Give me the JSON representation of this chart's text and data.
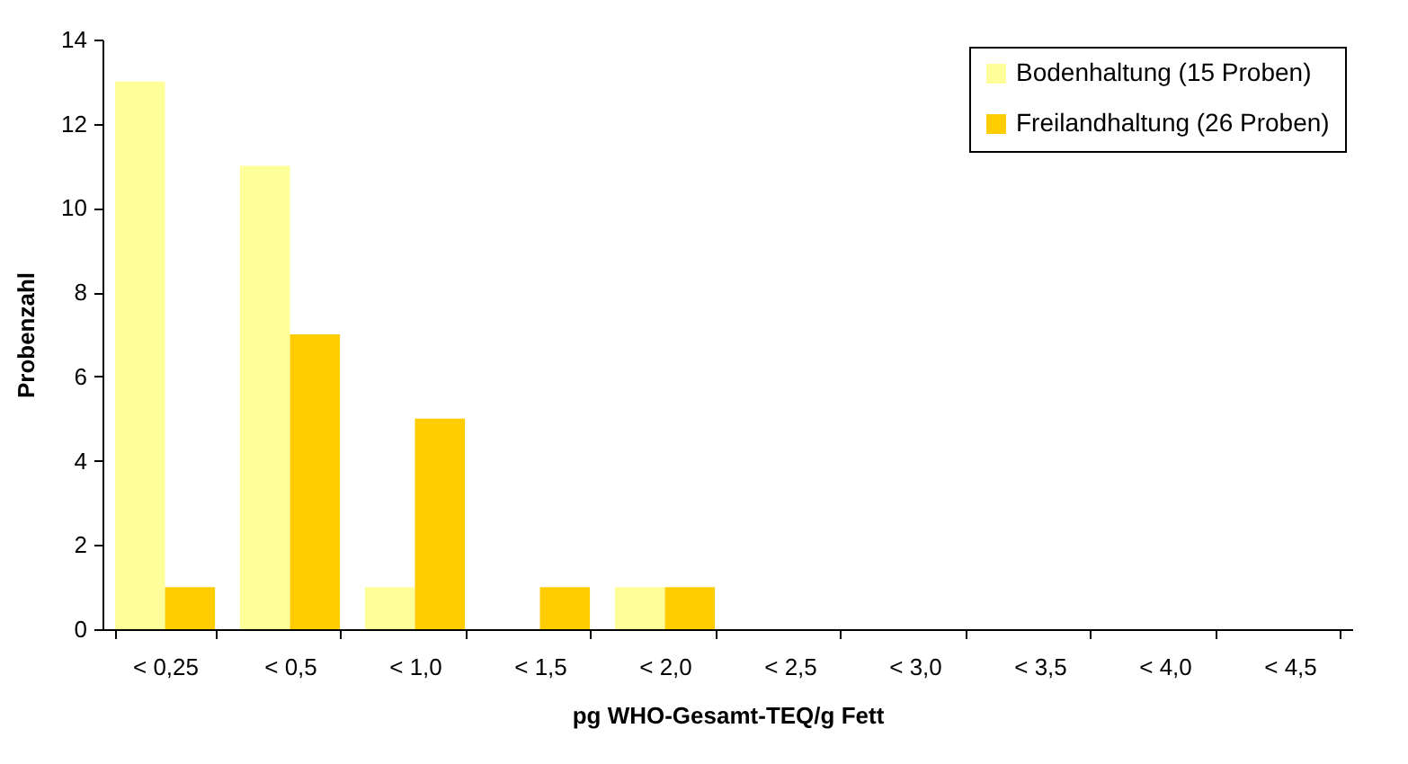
{
  "chart_data": {
    "type": "bar",
    "xlabel": "pg WHO-Gesamt-TEQ/g Fett",
    "ylabel": "Probenzahl",
    "categories": [
      "< 0,25",
      "< 0,5",
      "< 1,0",
      "< 1,5",
      "< 2,0",
      "< 2,5",
      "< 3,0",
      "< 3,5",
      "< 4,0",
      "< 4,5"
    ],
    "series": [
      {
        "name": "Bodenhaltung (15 Proben)",
        "color": "#ffff99",
        "values": [
          13,
          11,
          1,
          0,
          1,
          0,
          0,
          0,
          0,
          0
        ]
      },
      {
        "name": "Freilandhaltung (26 Proben)",
        "color": "#ffcc00",
        "values": [
          1,
          7,
          5,
          1,
          1,
          0,
          0,
          0,
          0,
          0
        ]
      }
    ],
    "ylim": [
      0,
      14
    ],
    "yticks": [
      0,
      2,
      4,
      6,
      8,
      10,
      12,
      14
    ],
    "grid": false,
    "legend": "top right"
  }
}
